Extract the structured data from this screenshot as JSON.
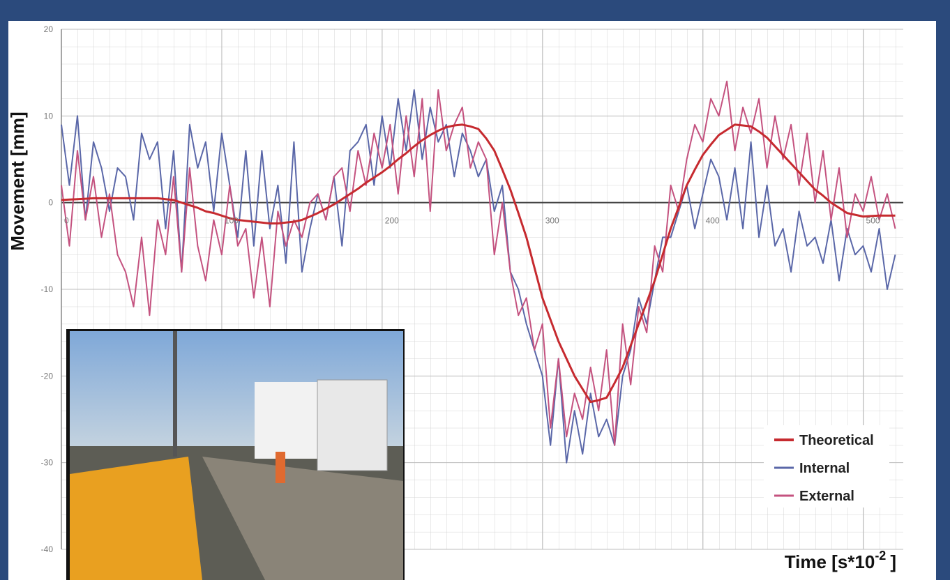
{
  "chart_data": {
    "type": "line",
    "ylabel": "Movement [mm]",
    "xlabel": "Time [s*10",
    "xlabel_sup": "-2",
    "xlabel_end": "]",
    "x": [
      0,
      5,
      10,
      15,
      20,
      25,
      30,
      35,
      40,
      45,
      50,
      55,
      60,
      65,
      70,
      75,
      80,
      85,
      90,
      95,
      100,
      105,
      110,
      115,
      120,
      125,
      130,
      135,
      140,
      145,
      150,
      155,
      160,
      165,
      170,
      175,
      180,
      185,
      190,
      195,
      200,
      205,
      210,
      215,
      220,
      225,
      230,
      235,
      240,
      245,
      250,
      255,
      260,
      265,
      270,
      275,
      280,
      285,
      290,
      295,
      300,
      305,
      310,
      315,
      320,
      325,
      330,
      335,
      340,
      345,
      350,
      355,
      360,
      365,
      370,
      375,
      380,
      385,
      390,
      395,
      400,
      405,
      410,
      415,
      420,
      425,
      430,
      435,
      440,
      445,
      450,
      455,
      460,
      465,
      470,
      475,
      480,
      485,
      490,
      495,
      500,
      505,
      510,
      515,
      520
    ],
    "series": [
      {
        "name": "Theoretical",
        "color": "#c62a2f",
        "width": 3,
        "values": [
          0.3,
          0.35,
          0.4,
          0.45,
          0.5,
          0.5,
          0.5,
          0.5,
          0.5,
          0.5,
          0.5,
          0.5,
          0.5,
          0.4,
          0.3,
          0,
          -0.3,
          -0.6,
          -1,
          -1.2,
          -1.5,
          -1.8,
          -2,
          -2.1,
          -2.2,
          -2.3,
          -2.4,
          -2.4,
          -2.3,
          -2.2,
          -2,
          -1.6,
          -1.2,
          -0.7,
          -0.2,
          0.4,
          1,
          1.6,
          2.3,
          2.9,
          3.5,
          4.2,
          5,
          5.7,
          6.5,
          7.2,
          7.8,
          8.3,
          8.7,
          8.9,
          9,
          8.8,
          8.5,
          7.4,
          6,
          3.8,
          1.5,
          -1.2,
          -4,
          -7.5,
          -11,
          -13.5,
          -16,
          -18,
          -20,
          -21.5,
          -23,
          -22.8,
          -22.5,
          -20.8,
          -19,
          -16.5,
          -14,
          -11.5,
          -9,
          -6,
          -3,
          -0.5,
          2,
          3.8,
          5.5,
          6.7,
          7.8,
          8.4,
          9,
          8.9,
          8.8,
          8.2,
          7.5,
          6.5,
          5.5,
          4.5,
          3.5,
          2.5,
          1.5,
          0.8,
          0,
          -0.6,
          -1.2,
          -1.4,
          -1.6,
          -1.55,
          -1.5,
          -1.5,
          -1.5
        ]
      },
      {
        "name": "Internal",
        "color": "#5a67a8",
        "width": 2,
        "values": [
          9,
          2,
          10,
          -2,
          7,
          4,
          -1,
          4,
          3,
          -2,
          8,
          5,
          7,
          -3,
          6,
          -8,
          9,
          4,
          7,
          -1,
          8,
          2,
          -4,
          6,
          -5,
          6,
          -3,
          2,
          -7,
          7,
          -8,
          -3,
          1,
          -2,
          3,
          -5,
          6,
          7,
          9,
          2,
          10,
          4,
          12,
          6,
          13,
          5,
          11,
          7,
          9,
          3,
          8,
          6,
          3,
          5,
          -1,
          2,
          -8,
          -10,
          -14,
          -17,
          -20,
          -28,
          -18,
          -30,
          -24,
          -29,
          -22,
          -27,
          -25,
          -28,
          -20,
          -17,
          -11,
          -14,
          -9,
          -4,
          -4,
          -1,
          2,
          -3,
          1,
          5,
          3,
          -2,
          4,
          -3,
          7,
          -4,
          2,
          -5,
          -3,
          -8,
          -1,
          -5,
          -4,
          -7,
          -2,
          -9,
          -3,
          -6,
          -5,
          -8,
          -3,
          -10,
          -6
        ]
      },
      {
        "name": "External",
        "color": "#c4527f",
        "width": 2,
        "values": [
          2,
          -5,
          6,
          -2,
          3,
          -4,
          1,
          -6,
          -8,
          -12,
          -4,
          -13,
          -2,
          -6,
          3,
          -8,
          4,
          -5,
          -9,
          -2,
          -6,
          2,
          -5,
          -3,
          -11,
          -4,
          -12,
          -1,
          -5,
          -2,
          -4,
          0,
          1,
          -2,
          3,
          4,
          -1,
          6,
          2,
          8,
          4,
          9,
          1,
          10,
          3,
          12,
          -1,
          13,
          6,
          9,
          11,
          4,
          7,
          5,
          -6,
          0,
          -8,
          -13,
          -11,
          -17,
          -14,
          -26,
          -18,
          -27,
          -22,
          -25,
          -19,
          -24,
          -17,
          -28,
          -14,
          -21,
          -12,
          -15,
          -5,
          -8,
          2,
          -1,
          5,
          9,
          7,
          12,
          10,
          14,
          6,
          11,
          8,
          12,
          4,
          10,
          5,
          9,
          2,
          8,
          0,
          6,
          -2,
          4,
          -4,
          1,
          -1,
          3,
          -2,
          1,
          -3
        ]
      }
    ],
    "xlim": [
      0,
      525
    ],
    "ylim": [
      -40,
      20
    ],
    "xticks": [
      0,
      100,
      200,
      300,
      400,
      500
    ],
    "yticks": [
      -40,
      -30,
      -20,
      -10,
      0,
      10,
      20
    ],
    "grid": true,
    "legend": "lower right"
  }
}
